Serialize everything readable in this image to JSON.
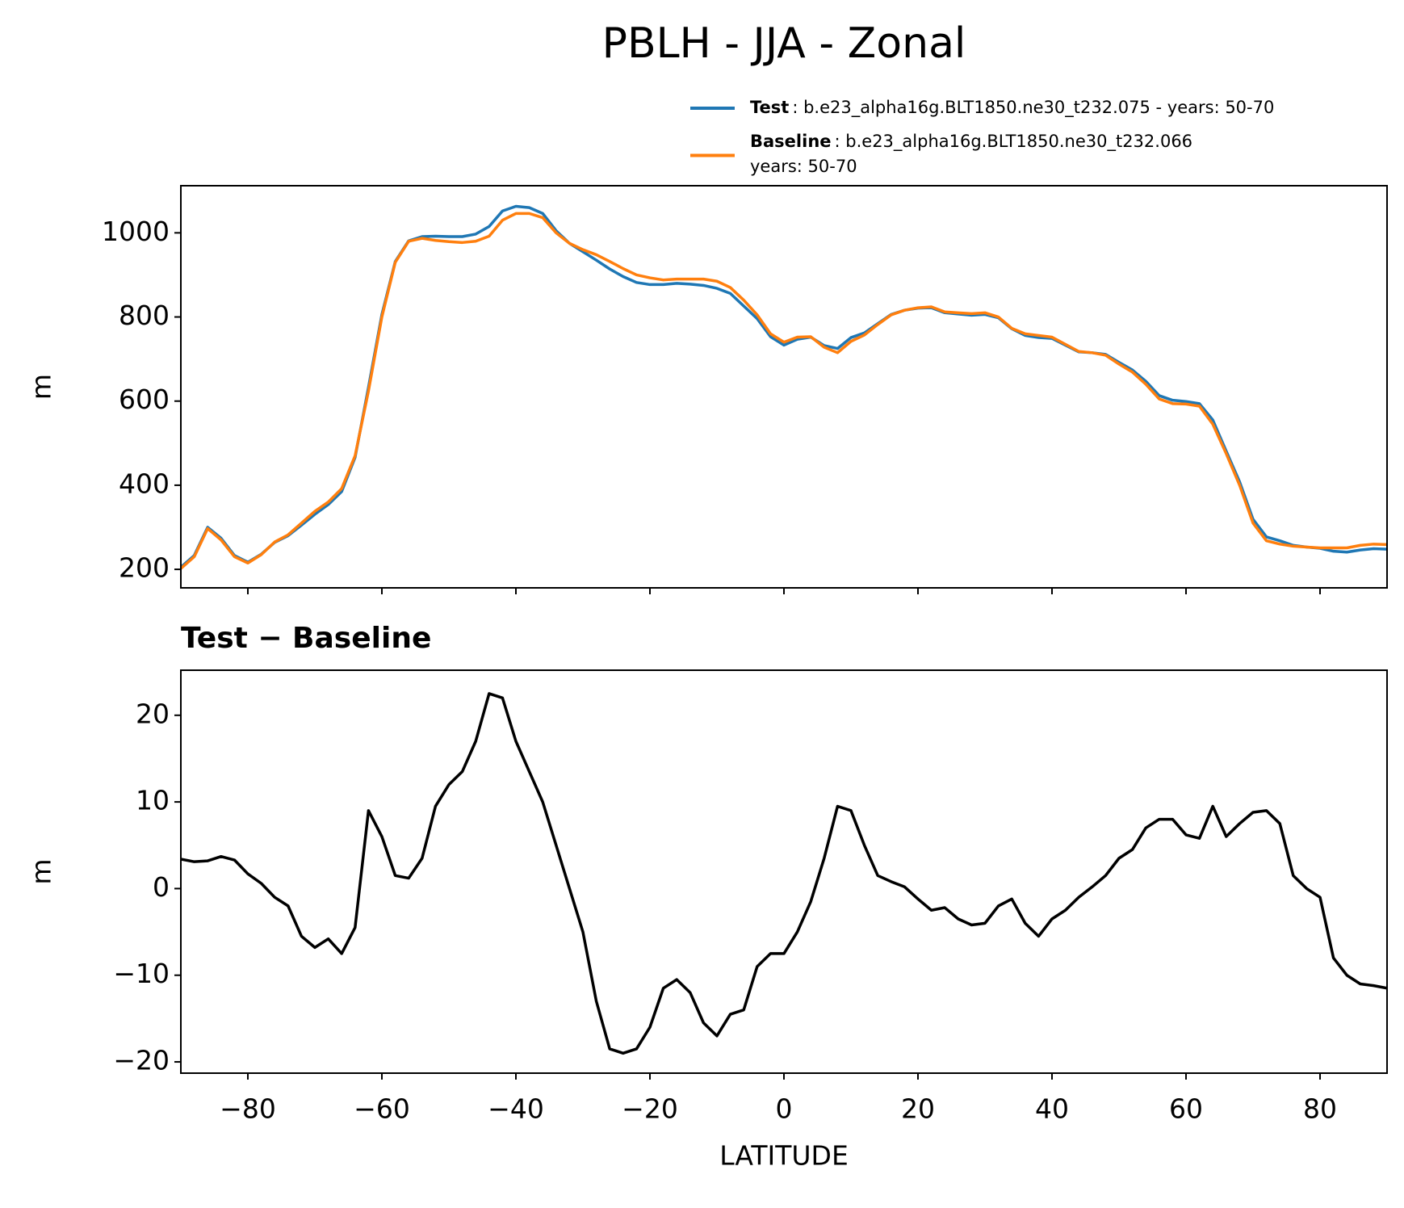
{
  "title": "PBLH - JJA - Zonal",
  "chart_data": [
    {
      "type": "line",
      "xlabel": null,
      "ylabel": "m",
      "x": [
        -90,
        -88,
        -86,
        -84,
        -82,
        -80,
        -78,
        -76,
        -74,
        -72,
        -70,
        -68,
        -66,
        -64,
        -62,
        -60,
        -58,
        -56,
        -54,
        -52,
        -50,
        -48,
        -46,
        -44,
        -42,
        -40,
        -38,
        -36,
        -34,
        -32,
        -30,
        -28,
        -26,
        -24,
        -22,
        -20,
        -18,
        -16,
        -14,
        -12,
        -10,
        -8,
        -6,
        -4,
        -2,
        0,
        2,
        4,
        6,
        8,
        10,
        12,
        14,
        16,
        18,
        20,
        22,
        24,
        26,
        28,
        30,
        32,
        34,
        36,
        38,
        40,
        42,
        44,
        46,
        48,
        50,
        52,
        54,
        56,
        58,
        60,
        62,
        64,
        66,
        68,
        70,
        72,
        74,
        76,
        78,
        80,
        82,
        84,
        86,
        88,
        90
      ],
      "series": [
        {
          "name": "Test",
          "description": [
            ": b.e23_alpha16g.BLT1850.ne30_t232.075 - years: 50-70"
          ],
          "color": "#1f77b4",
          "values": [
            205,
            233,
            300,
            274,
            233,
            217,
            236,
            264,
            280,
            305,
            331,
            354,
            385,
            466,
            633,
            806,
            932,
            981,
            991,
            992,
            991,
            991,
            997,
            1015,
            1052,
            1063,
            1060,
            1046,
            1005,
            975,
            955,
            935,
            914,
            896,
            882,
            877,
            877,
            880,
            878,
            875,
            868,
            856,
            826,
            796,
            753,
            733,
            747,
            752,
            732,
            725,
            751,
            762,
            784,
            806,
            816,
            821,
            822,
            810,
            807,
            804,
            806,
            798,
            772,
            756,
            751,
            749,
            733,
            717,
            715,
            711,
            692,
            674,
            647,
            613,
            602,
            599,
            594,
            555,
            481,
            408,
            319,
            277,
            268,
            257,
            253,
            250,
            243,
            241,
            246,
            249,
            248
          ]
        },
        {
          "name": "Baseline",
          "description": [
            ": b.e23_alpha16g.BLT1850.ne30_t232.066",
            "years: 50-70"
          ],
          "color": "#ff7f0e",
          "values": [
            202,
            230,
            297,
            270,
            230,
            215,
            235,
            265,
            282,
            310,
            338,
            360,
            392,
            470,
            624,
            800,
            930,
            980,
            987,
            982,
            979,
            977,
            980,
            992,
            1030,
            1046,
            1046,
            1036,
            1000,
            975,
            960,
            948,
            932,
            915,
            900,
            893,
            888,
            890,
            890,
            890,
            885,
            870,
            840,
            805,
            760,
            740,
            752,
            753,
            728,
            715,
            742,
            757,
            782,
            805,
            816,
            822,
            824,
            812,
            810,
            808,
            810,
            800,
            773,
            760,
            756,
            752,
            735,
            718,
            715,
            709,
            688,
            669,
            640,
            605,
            594,
            593,
            588,
            545,
            475,
            400,
            310,
            268,
            260,
            255,
            253,
            251,
            251,
            251,
            257,
            260,
            259
          ]
        }
      ],
      "xlim": [
        -90,
        90
      ],
      "xticks": [
        -80,
        -60,
        -40,
        -20,
        0,
        20,
        40,
        60,
        80
      ],
      "ylim": [
        156,
        1112
      ],
      "yticks": [
        200,
        400,
        600,
        800,
        1000
      ]
    },
    {
      "type": "line",
      "subtitle": "Test − Baseline",
      "xlabel": "LATITUDE",
      "ylabel": "m",
      "x": [
        -90,
        -88,
        -86,
        -84,
        -82,
        -80,
        -78,
        -76,
        -74,
        -72,
        -70,
        -68,
        -66,
        -64,
        -62,
        -60,
        -58,
        -56,
        -54,
        -52,
        -50,
        -48,
        -46,
        -44,
        -42,
        -40,
        -38,
        -36,
        -34,
        -32,
        -30,
        -28,
        -26,
        -24,
        -22,
        -20,
        -18,
        -16,
        -14,
        -12,
        -10,
        -8,
        -6,
        -4,
        -2,
        0,
        2,
        4,
        6,
        8,
        10,
        12,
        14,
        16,
        18,
        20,
        22,
        24,
        26,
        28,
        30,
        32,
        34,
        36,
        38,
        40,
        42,
        44,
        46,
        48,
        50,
        52,
        54,
        56,
        58,
        60,
        62,
        64,
        66,
        68,
        70,
        72,
        74,
        76,
        78,
        80,
        82,
        84,
        86,
        88,
        90
      ],
      "series": [
        {
          "color": "#000000",
          "values": [
            3.4,
            3.1,
            3.2,
            3.7,
            3.3,
            1.7,
            0.6,
            -1.0,
            -2.0,
            -5.5,
            -6.8,
            -5.8,
            -7.5,
            -4.5,
            9,
            6,
            1.5,
            1.2,
            3.5,
            9.5,
            12,
            13.5,
            17,
            22.5,
            22,
            17,
            13.5,
            10,
            5,
            0,
            -5,
            -13,
            -18.5,
            -19,
            -18.5,
            -16,
            -11.5,
            -10.5,
            -12,
            -15.5,
            -17,
            -14.5,
            -14,
            -9,
            -7.5,
            -7.5,
            -5,
            -1.5,
            3.5,
            9.5,
            9,
            5,
            1.5,
            0.8,
            0.2,
            -1.2,
            -2.5,
            -2.2,
            -3.5,
            -4.2,
            -4,
            -2,
            -1.2,
            -4,
            -5.5,
            -3.5,
            -2.5,
            -1,
            0.2,
            1.5,
            3.5,
            4.5,
            7,
            8,
            8,
            6.2,
            5.8,
            9.5,
            6,
            7.5,
            8.8,
            9,
            7.5,
            1.5,
            0,
            -1,
            -8,
            -10,
            -11,
            -11.2,
            -11.5
          ]
        }
      ],
      "xlim": [
        -90,
        90
      ],
      "xticks": [
        {
          "value": -80,
          "label": "−80"
        },
        {
          "value": -60,
          "label": "−60"
        },
        {
          "value": -40,
          "label": "−40"
        },
        {
          "value": -20,
          "label": "−20"
        },
        0,
        20,
        40,
        60,
        80
      ],
      "ylim": [
        -21.3,
        25.2
      ],
      "yticks": [
        {
          "value": -20,
          "label": "−20"
        },
        {
          "value": -10,
          "label": "−10"
        },
        0,
        10,
        20
      ]
    }
  ]
}
